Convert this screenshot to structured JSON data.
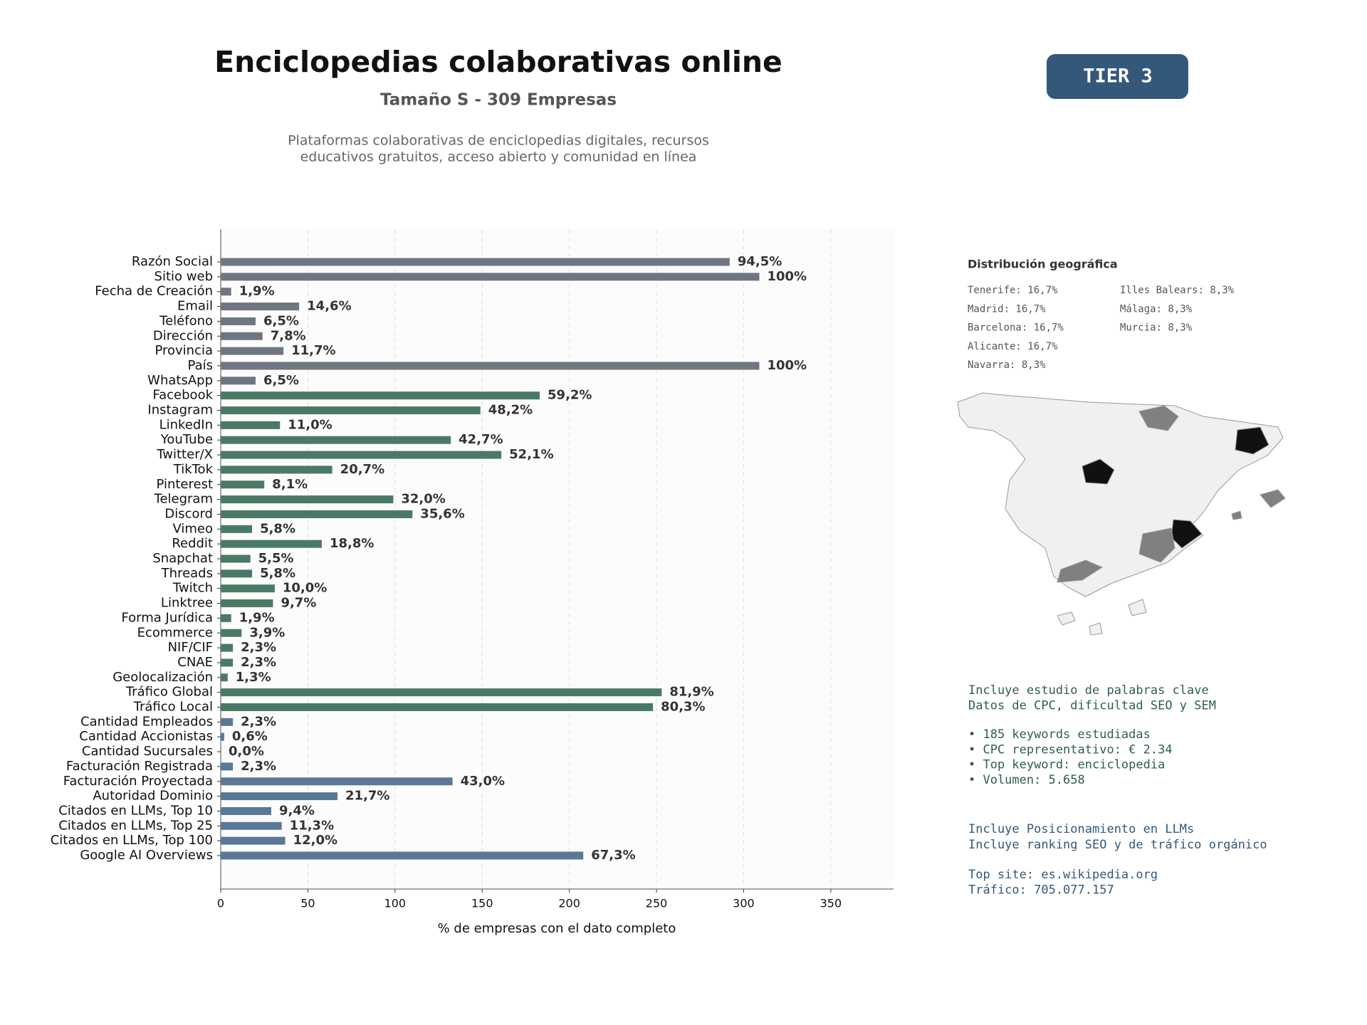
{
  "chart_data": {
    "type": "barh",
    "title": "Enciclopedias colaborativas online",
    "subtitle": "Tamaño S - 309 Empresas",
    "description": [
      "Plataformas colaborativas de enciclopedias digitales, recursos",
      "educativos gratuitos, acceso abierto y comunidad en línea"
    ],
    "badge": "TIER 3",
    "xlabel": "% de empresas con el dato completo",
    "categories": [
      "Razón Social",
      "Sitio web",
      "Fecha de Creación",
      "Email",
      "Teléfono",
      "Dirección",
      "Provincia",
      "País",
      "WhatsApp",
      "Facebook",
      "Instagram",
      "LinkedIn",
      "YouTube",
      "Twitter/X",
      "TikTok",
      "Pinterest",
      "Telegram",
      "Discord",
      "Vimeo",
      "Reddit",
      "Snapchat",
      "Threads",
      "Twitch",
      "Linktree",
      "Forma Jurídica",
      "Ecommerce",
      "NIF/CIF",
      "CNAE",
      "Geolocalización",
      "Tráfico Global",
      "Tráfico Local",
      "Cantidad Empleados",
      "Cantidad Accionistas",
      "Cantidad Sucursales",
      "Facturación Registrada",
      "Facturación Proyectada",
      "Autoridad Dominio",
      "Citados en LLMs, Top 10",
      "Citados en LLMs, Top 25",
      "Citados en LLMs, Top 100",
      "Google AI Overviews"
    ],
    "values": [
      292,
      309,
      6,
      45,
      20,
      24,
      36,
      309,
      20,
      183,
      149,
      34,
      132,
      161,
      64,
      25,
      99,
      110,
      18,
      58,
      17,
      18,
      31,
      30,
      6,
      12,
      7,
      7,
      4,
      253,
      248,
      7,
      2,
      0,
      7,
      133,
      67,
      29,
      35,
      37,
      208
    ],
    "value_labels": [
      "94,5%",
      "100%",
      "1,9%",
      "14,6%",
      "6,5%",
      "7,8%",
      "11,7%",
      "100%",
      "6,5%",
      "59,2%",
      "48,2%",
      "11,0%",
      "42,7%",
      "52,1%",
      "20,7%",
      "8,1%",
      "32,0%",
      "35,6%",
      "5,8%",
      "18,8%",
      "5,5%",
      "5,8%",
      "10,0%",
      "9,7%",
      "1,9%",
      "3,9%",
      "2,3%",
      "2,3%",
      "1,3%",
      "81,9%",
      "80,3%",
      "2,3%",
      "0,6%",
      "0,0%",
      "2,3%",
      "43,0%",
      "21,7%",
      "9,4%",
      "11,3%",
      "12,0%",
      "67,3%"
    ],
    "colors": [
      "#6e7781",
      "#6e7781",
      "#6e7781",
      "#6e7781",
      "#6e7781",
      "#6e7781",
      "#6e7781",
      "#6e7781",
      "#6e7781",
      "#4a7a65",
      "#4a7a65",
      "#4a7a65",
      "#4a7a65",
      "#4a7a65",
      "#4a7a65",
      "#4a7a65",
      "#4a7a65",
      "#4a7a65",
      "#4a7a65",
      "#4a7a65",
      "#4a7a65",
      "#4a7a65",
      "#4a7a65",
      "#4a7a65",
      "#4a7a65",
      "#4a7a65",
      "#4a7a65",
      "#4a7a65",
      "#4a7a65",
      "#4a7a65",
      "#4a7a65",
      "#5a7896",
      "#5a7896",
      "#5a7896",
      "#5a7896",
      "#5a7896",
      "#5a7896",
      "#5a7896",
      "#5a7896",
      "#5a7896",
      "#5a7896"
    ],
    "xlim": [
      0,
      386
    ],
    "xticks": [
      0,
      50,
      100,
      150,
      200,
      250,
      300,
      350
    ],
    "grid": true
  },
  "geo": {
    "title": "Distribución geográfica",
    "items": [
      "Tenerife: 16,7%",
      "Madrid: 16,7%",
      "Barcelona: 16,7%",
      "Alicante: 16,7%",
      "Navarra: 8,3%",
      "Illes Balears: 8,3%",
      "Málaga: 8,3%",
      "Murcia: 8,3%"
    ]
  },
  "info": {
    "seo_lines": [
      "Incluye estudio de palabras clave",
      "Datos de CPC, dificultad SEO y SEM"
    ],
    "bullets": [
      "• 185 keywords estudiadas",
      "• CPC representativo: € 2.34",
      "• Top keyword: enciclopedia",
      "• Volumen: 5.658"
    ],
    "llm_lines": [
      "Incluye Posicionamiento en LLMs",
      "Incluye ranking SEO y de tráfico orgánico"
    ],
    "site_lines": [
      "Top site: es.wikipedia.org",
      "Tráfico: 705.077.157"
    ]
  }
}
